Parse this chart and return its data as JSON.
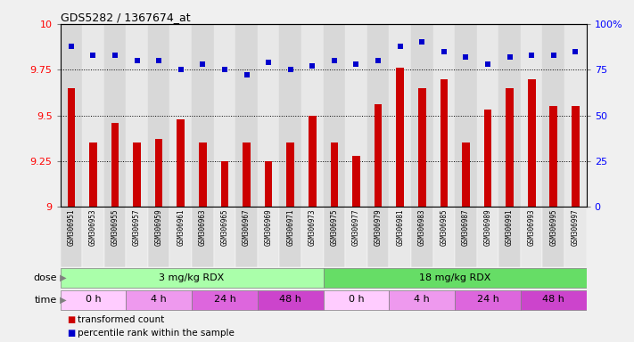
{
  "title": "GDS5282 / 1367674_at",
  "samples": [
    "GSM306951",
    "GSM306953",
    "GSM306955",
    "GSM306957",
    "GSM306959",
    "GSM306961",
    "GSM306963",
    "GSM306965",
    "GSM306967",
    "GSM306969",
    "GSM306971",
    "GSM306973",
    "GSM306975",
    "GSM306977",
    "GSM306979",
    "GSM306981",
    "GSM306983",
    "GSM306985",
    "GSM306987",
    "GSM306989",
    "GSM306991",
    "GSM306993",
    "GSM306995",
    "GSM306997"
  ],
  "red_values": [
    9.65,
    9.35,
    9.46,
    9.35,
    9.37,
    9.48,
    9.35,
    9.25,
    9.35,
    9.25,
    9.35,
    9.5,
    9.35,
    9.28,
    9.56,
    9.76,
    9.65,
    9.7,
    9.35,
    9.53,
    9.65,
    9.7,
    9.55,
    9.55
  ],
  "blue_values": [
    88,
    83,
    83,
    80,
    80,
    75,
    78,
    75,
    72,
    79,
    75,
    77,
    80,
    78,
    80,
    88,
    90,
    85,
    82,
    78,
    82,
    83,
    83,
    85
  ],
  "ylim_left": [
    9.0,
    10.0
  ],
  "ylim_right": [
    0,
    100
  ],
  "yticks_left": [
    9.0,
    9.25,
    9.5,
    9.75,
    10.0
  ],
  "ytick_labels_left": [
    "9",
    "9.25",
    "9.5",
    "9.75",
    "10"
  ],
  "yticks_right": [
    0,
    25,
    50,
    75,
    100
  ],
  "ytick_labels_right": [
    "0",
    "25",
    "50",
    "75",
    "100%"
  ],
  "hlines": [
    9.25,
    9.5,
    9.75
  ],
  "bar_color": "#cc0000",
  "dot_color": "#0000cc",
  "cell_colors": [
    "#d8d8d8",
    "#e8e8e8"
  ],
  "dose_groups": [
    {
      "label": "3 mg/kg RDX",
      "start": 0,
      "end": 12,
      "color": "#aaffaa"
    },
    {
      "label": "18 mg/kg RDX",
      "start": 12,
      "end": 24,
      "color": "#66dd66"
    }
  ],
  "time_groups": [
    {
      "label": "0 h",
      "start": 0,
      "end": 3,
      "color": "#ffccff"
    },
    {
      "label": "4 h",
      "start": 3,
      "end": 6,
      "color": "#ee99ee"
    },
    {
      "label": "24 h",
      "start": 6,
      "end": 9,
      "color": "#dd66dd"
    },
    {
      "label": "48 h",
      "start": 9,
      "end": 12,
      "color": "#cc44cc"
    },
    {
      "label": "0 h",
      "start": 12,
      "end": 15,
      "color": "#ffccff"
    },
    {
      "label": "4 h",
      "start": 15,
      "end": 18,
      "color": "#ee99ee"
    },
    {
      "label": "24 h",
      "start": 18,
      "end": 21,
      "color": "#dd66dd"
    },
    {
      "label": "48 h",
      "start": 21,
      "end": 24,
      "color": "#cc44cc"
    }
  ],
  "legend_red": "transformed count",
  "legend_blue": "percentile rank within the sample",
  "fig_bg": "#f0f0f0"
}
